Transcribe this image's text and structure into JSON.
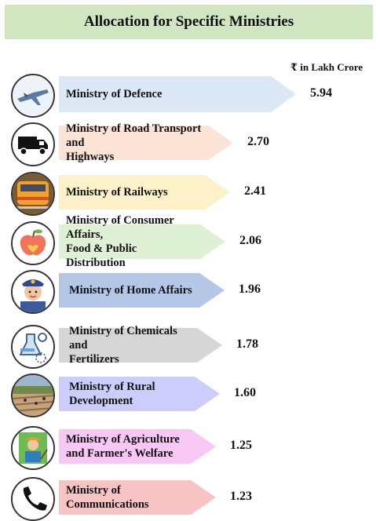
{
  "title": "Allocation for Specific Ministries",
  "unit": "₹ in Lakh Crore",
  "chart_data": {
    "type": "bar",
    "orientation": "horizontal",
    "title": "Allocation for Specific Ministries",
    "ylabel": "₹ in Lakh Crore",
    "categories": [
      "Ministry of Defence",
      "Ministry of Road Transport and Highways",
      "Ministry of Railways",
      "Ministry of Consumer Affairs, Food & Public Distribution",
      "Ministry of Home Affairs",
      "Ministry of Chemicals and Fertilizers",
      "Ministry of Rural Development",
      "Ministry of Agriculture and Farmer's Welfare",
      "Ministry of Communications"
    ],
    "values": [
      5.94,
      2.7,
      2.41,
      2.06,
      1.96,
      1.78,
      1.6,
      1.25,
      1.23
    ],
    "value_labels": [
      "5.94",
      "2.70",
      "2.41",
      "2.06",
      "1.96",
      "1.78",
      "1.60",
      "1.25",
      "1.23"
    ],
    "label_lines": [
      [
        "Ministry of Defence"
      ],
      [
        "Ministry of Road Transport and",
        "Highways"
      ],
      [
        "Ministry of Railways"
      ],
      [
        "Ministry of Consumer Affairs,",
        "Food & Public Distribution"
      ],
      [
        "Ministry of Home Affairs"
      ],
      [
        "Ministry of Chemicals and",
        "Fertilizers"
      ],
      [
        "Ministry of Rural",
        "Development"
      ],
      [
        "Ministry of Agriculture",
        "and Farmer's Welfare"
      ],
      [
        "Ministry of",
        "Communications"
      ]
    ],
    "colors": [
      "#dce8f6",
      "#fbe3d6",
      "#fdf1c9",
      "#dff1d5",
      "#b4c7e7",
      "#d6d6d6",
      "#cccdfb",
      "#f7c8f3",
      "#f7c3c3"
    ],
    "icons": [
      "fighter-jet-icon",
      "truck-icon",
      "train-icon",
      "apple-icon",
      "police-officer-icon",
      "chemicals-icon",
      "rural-field-icon",
      "farmer-icon",
      "telephone-icon"
    ]
  }
}
